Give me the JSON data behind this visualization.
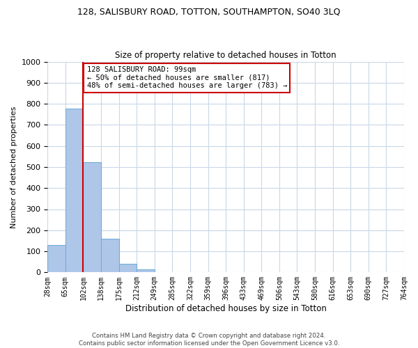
{
  "title": "128, SALISBURY ROAD, TOTTON, SOUTHAMPTON, SO40 3LQ",
  "subtitle": "Size of property relative to detached houses in Totton",
  "xlabel": "Distribution of detached houses by size in Totton",
  "ylabel": "Number of detached properties",
  "bin_labels": [
    "28sqm",
    "65sqm",
    "102sqm",
    "138sqm",
    "175sqm",
    "212sqm",
    "249sqm",
    "285sqm",
    "322sqm",
    "359sqm",
    "396sqm",
    "433sqm",
    "469sqm",
    "506sqm",
    "543sqm",
    "580sqm",
    "616sqm",
    "653sqm",
    "690sqm",
    "727sqm",
    "764sqm"
  ],
  "bar_heights": [
    130,
    778,
    524,
    158,
    40,
    13,
    0,
    0,
    0,
    0,
    0,
    0,
    0,
    0,
    0,
    0,
    0,
    0,
    0,
    0
  ],
  "bar_color": "#aec6e8",
  "bar_edge_color": "#6aaad4",
  "vline_x": 2,
  "vline_color": "#cc0000",
  "ylim": [
    0,
    1000
  ],
  "yticks": [
    0,
    100,
    200,
    300,
    400,
    500,
    600,
    700,
    800,
    900,
    1000
  ],
  "annotation_title": "128 SALISBURY ROAD: 99sqm",
  "annotation_line1": "← 50% of detached houses are smaller (817)",
  "annotation_line2": "48% of semi-detached houses are larger (783) →",
  "annotation_box_color": "#ffffff",
  "annotation_box_edge": "#cc0000",
  "footer1": "Contains HM Land Registry data © Crown copyright and database right 2024.",
  "footer2": "Contains public sector information licensed under the Open Government Licence v3.0.",
  "background_color": "#ffffff",
  "grid_color": "#c8d8e8"
}
